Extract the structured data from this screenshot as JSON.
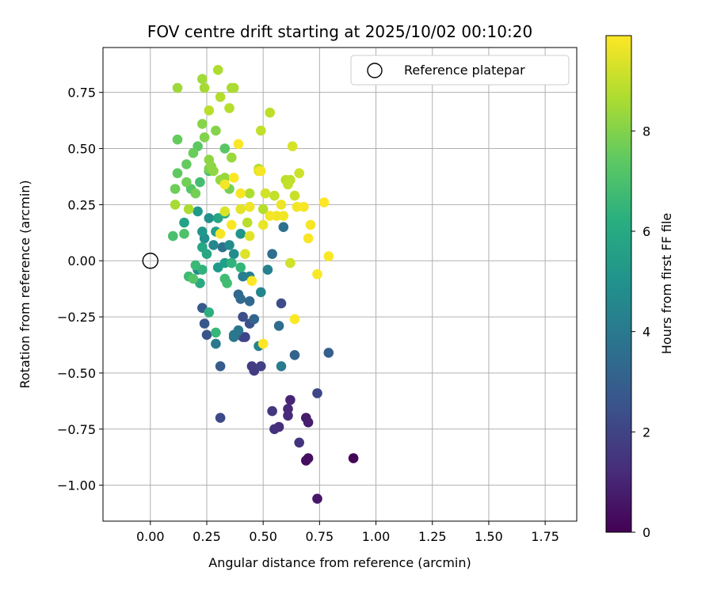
{
  "chart_data": {
    "type": "scatter",
    "title": "FOV centre drift starting at 2025/10/02 00:10:20",
    "xlabel": "Angular distance from reference (arcmin)",
    "ylabel": "Rotation from reference (arcmin)",
    "xlim": [
      -0.21,
      1.89
    ],
    "ylim": [
      -1.16,
      0.95
    ],
    "xticks": [
      0.0,
      0.25,
      0.5,
      0.75,
      1.0,
      1.25,
      1.5,
      1.75
    ],
    "xtick_labels": [
      "0.00",
      "0.25",
      "0.50",
      "0.75",
      "1.00",
      "1.25",
      "1.50",
      "1.75"
    ],
    "yticks": [
      0.75,
      0.5,
      0.25,
      0.0,
      -0.25,
      -0.5,
      -0.75,
      -1.0
    ],
    "ytick_labels": [
      "0.75",
      "0.50",
      "0.25",
      "0.00",
      "−0.25",
      "−0.50",
      "−0.75",
      "−1.00"
    ],
    "grid": true,
    "legend": {
      "placement": "top-right",
      "entries": [
        {
          "label": "Reference platepar",
          "marker": "open-circle"
        }
      ]
    },
    "reference_point": {
      "x": 0.0,
      "y": 0.0,
      "label": "Reference platepar"
    },
    "colorbar": {
      "label": "Hours from first FF file",
      "colormap": "viridis",
      "range": [
        0,
        9.9
      ],
      "ticks": [
        0,
        2,
        4,
        6,
        8
      ],
      "tick_labels": [
        "0",
        "2",
        "4",
        "6",
        "8"
      ]
    },
    "points": [
      [
        0.9,
        -0.88,
        0.1
      ],
      [
        0.69,
        -0.89,
        0.3
      ],
      [
        0.7,
        -0.88,
        0.4
      ],
      [
        0.74,
        -1.06,
        0.6
      ],
      [
        0.69,
        -0.7,
        0.7
      ],
      [
        0.7,
        -0.72,
        0.8
      ],
      [
        0.62,
        -0.62,
        1.0
      ],
      [
        0.61,
        -0.66,
        1.1
      ],
      [
        0.61,
        -0.69,
        1.2
      ],
      [
        0.57,
        -0.74,
        1.3
      ],
      [
        0.55,
        -0.75,
        1.4
      ],
      [
        0.66,
        -0.81,
        1.5
      ],
      [
        0.54,
        -0.67,
        1.6
      ],
      [
        0.46,
        -0.49,
        1.7
      ],
      [
        0.45,
        -0.47,
        1.8
      ],
      [
        0.49,
        -0.47,
        1.9
      ],
      [
        0.41,
        -0.34,
        2.0
      ],
      [
        0.42,
        -0.34,
        2.05
      ],
      [
        0.74,
        -0.59,
        2.1
      ],
      [
        0.31,
        -0.7,
        2.2
      ],
      [
        0.58,
        -0.19,
        2.3
      ],
      [
        0.41,
        -0.25,
        2.4
      ],
      [
        0.44,
        -0.28,
        2.5
      ],
      [
        0.25,
        -0.33,
        2.6
      ],
      [
        0.24,
        -0.28,
        2.7
      ],
      [
        0.23,
        -0.21,
        2.8
      ],
      [
        0.38,
        -0.33,
        2.85
      ],
      [
        0.31,
        -0.47,
        2.9
      ],
      [
        0.79,
        -0.41,
        3.0
      ],
      [
        0.64,
        -0.42,
        3.1
      ],
      [
        0.46,
        -0.26,
        3.2
      ],
      [
        0.39,
        -0.15,
        3.3
      ],
      [
        0.44,
        -0.18,
        3.35
      ],
      [
        0.4,
        -0.17,
        3.4
      ],
      [
        0.57,
        -0.29,
        3.5
      ],
      [
        0.54,
        0.03,
        3.55
      ],
      [
        0.59,
        0.15,
        3.6
      ],
      [
        0.32,
        0.06,
        3.7
      ],
      [
        0.37,
        -0.34,
        3.8
      ],
      [
        0.39,
        -0.31,
        3.9
      ],
      [
        0.37,
        -0.33,
        3.95
      ],
      [
        0.29,
        -0.37,
        4.0
      ],
      [
        0.58,
        -0.47,
        4.1
      ],
      [
        0.41,
        -0.07,
        4.2
      ],
      [
        0.44,
        -0.07,
        4.25
      ],
      [
        0.52,
        -0.04,
        4.3
      ],
      [
        0.48,
        -0.38,
        4.4
      ],
      [
        0.49,
        -0.14,
        4.5
      ],
      [
        0.28,
        0.07,
        4.6
      ],
      [
        0.21,
        -0.04,
        4.7
      ],
      [
        0.35,
        0.07,
        4.8
      ],
      [
        0.37,
        0.03,
        4.85
      ],
      [
        0.24,
        0.1,
        4.9
      ],
      [
        0.26,
        0.19,
        5.0
      ],
      [
        0.4,
        0.12,
        5.1
      ],
      [
        0.23,
        0.13,
        5.2
      ],
      [
        0.21,
        0.22,
        5.3
      ],
      [
        0.3,
        -0.03,
        5.4
      ],
      [
        0.33,
        -0.01,
        5.5
      ],
      [
        0.29,
        0.13,
        5.6
      ],
      [
        0.15,
        0.17,
        5.7
      ],
      [
        0.3,
        0.19,
        5.8
      ],
      [
        0.23,
        0.06,
        5.85
      ],
      [
        0.25,
        0.03,
        5.9
      ],
      [
        0.36,
        -0.01,
        6.0
      ],
      [
        0.22,
        -0.1,
        6.05
      ],
      [
        0.33,
        0.21,
        6.1
      ],
      [
        0.26,
        -0.23,
        6.2
      ],
      [
        0.23,
        -0.04,
        6.3
      ],
      [
        0.36,
        -0.01,
        6.4
      ],
      [
        0.4,
        -0.03,
        6.5
      ],
      [
        0.29,
        -0.32,
        6.6
      ],
      [
        0.2,
        -0.02,
        6.7
      ],
      [
        0.17,
        -0.07,
        6.75
      ],
      [
        0.33,
        -0.08,
        6.8
      ],
      [
        0.34,
        -0.1,
        6.85
      ],
      [
        0.22,
        0.35,
        6.9
      ],
      [
        0.26,
        0.4,
        6.95
      ],
      [
        0.1,
        0.11,
        7.0
      ],
      [
        0.15,
        0.12,
        7.1
      ],
      [
        0.19,
        -0.08,
        7.2
      ],
      [
        0.18,
        0.32,
        7.25
      ],
      [
        0.33,
        0.5,
        7.3
      ],
      [
        0.21,
        0.51,
        7.35
      ],
      [
        0.12,
        0.39,
        7.4
      ],
      [
        0.16,
        0.43,
        7.5
      ],
      [
        0.12,
        0.54,
        7.55
      ],
      [
        0.19,
        0.48,
        7.6
      ],
      [
        0.11,
        0.32,
        7.7
      ],
      [
        0.16,
        0.35,
        7.75
      ],
      [
        0.2,
        0.3,
        7.8
      ],
      [
        0.35,
        0.32,
        7.85
      ],
      [
        0.26,
        0.41,
        7.9
      ],
      [
        0.24,
        0.55,
        8.0
      ],
      [
        0.29,
        0.58,
        8.05
      ],
      [
        0.23,
        0.61,
        8.1
      ],
      [
        0.27,
        0.42,
        8.15
      ],
      [
        0.26,
        0.45,
        8.2
      ],
      [
        0.28,
        0.4,
        8.25
      ],
      [
        0.31,
        0.36,
        8.3
      ],
      [
        0.33,
        0.37,
        8.35
      ],
      [
        0.36,
        0.46,
        8.4
      ],
      [
        0.12,
        0.77,
        8.45
      ],
      [
        0.23,
        0.81,
        8.5
      ],
      [
        0.24,
        0.77,
        8.55
      ],
      [
        0.36,
        0.77,
        8.6
      ],
      [
        0.37,
        0.77,
        8.65
      ],
      [
        0.3,
        0.85,
        8.7
      ],
      [
        0.31,
        0.73,
        8.75
      ],
      [
        0.35,
        0.68,
        8.8
      ],
      [
        0.26,
        0.67,
        8.85
      ],
      [
        0.53,
        0.66,
        8.9
      ],
      [
        0.49,
        0.58,
        8.95
      ],
      [
        0.11,
        0.25,
        8.6
      ],
      [
        0.17,
        0.23,
        8.65
      ],
      [
        0.44,
        0.3,
        8.7
      ],
      [
        0.48,
        0.41,
        8.75
      ],
      [
        0.5,
        0.23,
        8.8
      ],
      [
        0.43,
        0.17,
        8.85
      ],
      [
        0.6,
        0.36,
        8.9
      ],
      [
        0.62,
        0.36,
        8.95
      ],
      [
        0.55,
        0.29,
        9.0
      ],
      [
        0.61,
        0.34,
        9.05
      ],
      [
        0.64,
        0.29,
        9.1
      ],
      [
        0.66,
        0.39,
        9.15
      ],
      [
        0.62,
        -0.01,
        9.2
      ],
      [
        0.51,
        0.3,
        9.25
      ],
      [
        0.63,
        0.51,
        9.3
      ],
      [
        0.33,
        0.22,
        9.35
      ],
      [
        0.42,
        0.03,
        9.4
      ],
      [
        0.44,
        0.11,
        9.45
      ],
      [
        0.4,
        0.23,
        9.5
      ],
      [
        0.48,
        0.4,
        9.55
      ],
      [
        0.5,
        0.16,
        9.6
      ],
      [
        0.58,
        0.25,
        9.65
      ],
      [
        0.56,
        0.2,
        9.7
      ],
      [
        0.65,
        0.24,
        9.75
      ],
      [
        0.68,
        0.24,
        9.78
      ],
      [
        0.71,
        0.16,
        9.8
      ],
      [
        0.7,
        0.1,
        9.82
      ],
      [
        0.74,
        -0.06,
        9.84
      ],
      [
        0.79,
        0.02,
        9.86
      ],
      [
        0.64,
        -0.26,
        9.88
      ],
      [
        0.5,
        -0.37,
        9.9
      ],
      [
        0.45,
        -0.09,
        9.9
      ],
      [
        0.77,
        0.26,
        9.9
      ],
      [
        0.37,
        0.37,
        9.88
      ],
      [
        0.39,
        0.52,
        9.86
      ],
      [
        0.36,
        0.16,
        9.84
      ],
      [
        0.4,
        0.3,
        9.82
      ],
      [
        0.31,
        0.12,
        9.8
      ],
      [
        0.49,
        0.4,
        9.78
      ],
      [
        0.33,
        0.34,
        9.76
      ],
      [
        0.53,
        0.2,
        9.74
      ],
      [
        0.59,
        0.2,
        9.72
      ],
      [
        0.44,
        0.24,
        9.7
      ]
    ]
  }
}
